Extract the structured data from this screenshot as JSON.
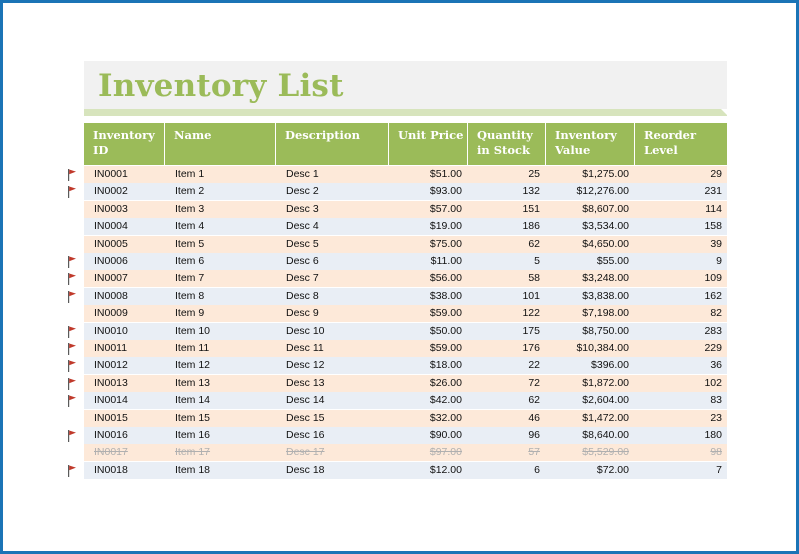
{
  "title": "Inventory List",
  "columns": [
    {
      "key": "id",
      "label": "Inventory ID"
    },
    {
      "key": "name",
      "label": "Name"
    },
    {
      "key": "desc",
      "label": "Description"
    },
    {
      "key": "price",
      "label": "Unit Price"
    },
    {
      "key": "qty",
      "label": "Quantity in Stock"
    },
    {
      "key": "value",
      "label": "Inventory Value"
    },
    {
      "key": "reorder",
      "label": "Reorder Level"
    }
  ],
  "flag_icon": "red-flag-icon",
  "colors": {
    "title": "#9bbb59",
    "header_bg": "#9bbb59",
    "row_peach": "#fde9d9",
    "row_blue": "#e9eef5",
    "flag": "#c0392b",
    "border": "#1b74b6"
  },
  "rows": [
    {
      "id": "IN0001",
      "name": "Item 1",
      "desc": "Desc 1",
      "price": "$51.00",
      "qty": "25",
      "value": "$1,275.00",
      "reorder": "29",
      "flag": true,
      "discontinued": false
    },
    {
      "id": "IN0002",
      "name": "Item 2",
      "desc": "Desc 2",
      "price": "$93.00",
      "qty": "132",
      "value": "$12,276.00",
      "reorder": "231",
      "flag": true,
      "discontinued": false
    },
    {
      "id": "IN0003",
      "name": "Item 3",
      "desc": "Desc 3",
      "price": "$57.00",
      "qty": "151",
      "value": "$8,607.00",
      "reorder": "114",
      "flag": false,
      "discontinued": false
    },
    {
      "id": "IN0004",
      "name": "Item 4",
      "desc": "Desc 4",
      "price": "$19.00",
      "qty": "186",
      "value": "$3,534.00",
      "reorder": "158",
      "flag": false,
      "discontinued": false
    },
    {
      "id": "IN0005",
      "name": "Item 5",
      "desc": "Desc 5",
      "price": "$75.00",
      "qty": "62",
      "value": "$4,650.00",
      "reorder": "39",
      "flag": false,
      "discontinued": false
    },
    {
      "id": "IN0006",
      "name": "Item 6",
      "desc": "Desc 6",
      "price": "$11.00",
      "qty": "5",
      "value": "$55.00",
      "reorder": "9",
      "flag": true,
      "discontinued": false
    },
    {
      "id": "IN0007",
      "name": "Item 7",
      "desc": "Desc 7",
      "price": "$56.00",
      "qty": "58",
      "value": "$3,248.00",
      "reorder": "109",
      "flag": true,
      "discontinued": false
    },
    {
      "id": "IN0008",
      "name": "Item 8",
      "desc": "Desc 8",
      "price": "$38.00",
      "qty": "101",
      "value": "$3,838.00",
      "reorder": "162",
      "flag": true,
      "discontinued": false
    },
    {
      "id": "IN0009",
      "name": "Item 9",
      "desc": "Desc 9",
      "price": "$59.00",
      "qty": "122",
      "value": "$7,198.00",
      "reorder": "82",
      "flag": false,
      "discontinued": false
    },
    {
      "id": "IN0010",
      "name": "Item 10",
      "desc": "Desc 10",
      "price": "$50.00",
      "qty": "175",
      "value": "$8,750.00",
      "reorder": "283",
      "flag": true,
      "discontinued": false
    },
    {
      "id": "IN0011",
      "name": "Item 11",
      "desc": "Desc 11",
      "price": "$59.00",
      "qty": "176",
      "value": "$10,384.00",
      "reorder": "229",
      "flag": true,
      "discontinued": false
    },
    {
      "id": "IN0012",
      "name": "Item 12",
      "desc": "Desc 12",
      "price": "$18.00",
      "qty": "22",
      "value": "$396.00",
      "reorder": "36",
      "flag": true,
      "discontinued": false
    },
    {
      "id": "IN0013",
      "name": "Item 13",
      "desc": "Desc 13",
      "price": "$26.00",
      "qty": "72",
      "value": "$1,872.00",
      "reorder": "102",
      "flag": true,
      "discontinued": false
    },
    {
      "id": "IN0014",
      "name": "Item 14",
      "desc": "Desc 14",
      "price": "$42.00",
      "qty": "62",
      "value": "$2,604.00",
      "reorder": "83",
      "flag": true,
      "discontinued": false
    },
    {
      "id": "IN0015",
      "name": "Item 15",
      "desc": "Desc 15",
      "price": "$32.00",
      "qty": "46",
      "value": "$1,472.00",
      "reorder": "23",
      "flag": false,
      "discontinued": false
    },
    {
      "id": "IN0016",
      "name": "Item 16",
      "desc": "Desc 16",
      "price": "$90.00",
      "qty": "96",
      "value": "$8,640.00",
      "reorder": "180",
      "flag": true,
      "discontinued": false
    },
    {
      "id": "IN0017",
      "name": "Item 17",
      "desc": "Desc 17",
      "price": "$97.00",
      "qty": "57",
      "value": "$5,529.00",
      "reorder": "98",
      "flag": false,
      "discontinued": true
    },
    {
      "id": "IN0018",
      "name": "Item 18",
      "desc": "Desc 18",
      "price": "$12.00",
      "qty": "6",
      "value": "$72.00",
      "reorder": "7",
      "flag": true,
      "discontinued": false
    }
  ]
}
